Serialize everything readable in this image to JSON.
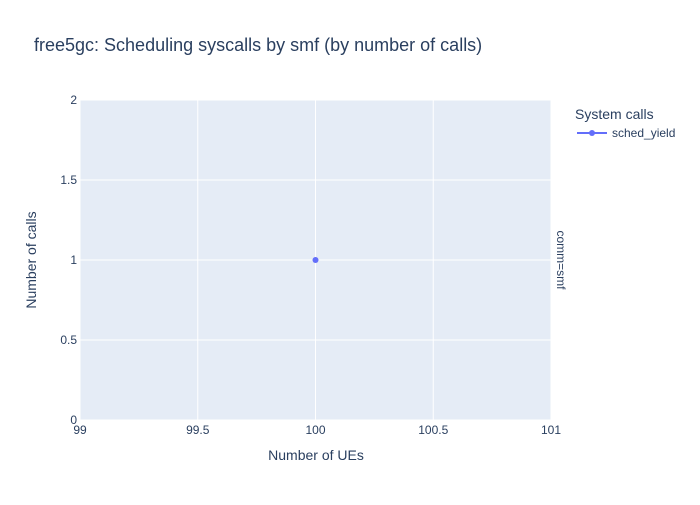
{
  "chart_data": {
    "type": "scatter",
    "title": "free5gc: Scheduling syscalls by smf (by number of calls)",
    "xlabel": "Number of UEs",
    "ylabel": "Number of calls",
    "xlim": [
      99,
      101
    ],
    "ylim": [
      0,
      2
    ],
    "x_ticks": [
      "99",
      "99.5",
      "100",
      "100.5",
      "101"
    ],
    "y_ticks": [
      "0",
      "0.5",
      "1",
      "1.5",
      "2"
    ],
    "grid": true,
    "legend": {
      "title": "System calls",
      "placement": "right"
    },
    "facet_label": "comm=smf",
    "series": [
      {
        "name": "sched_yield",
        "color": "#636efa",
        "points": [
          {
            "x": 100,
            "y": 1
          }
        ]
      }
    ]
  }
}
